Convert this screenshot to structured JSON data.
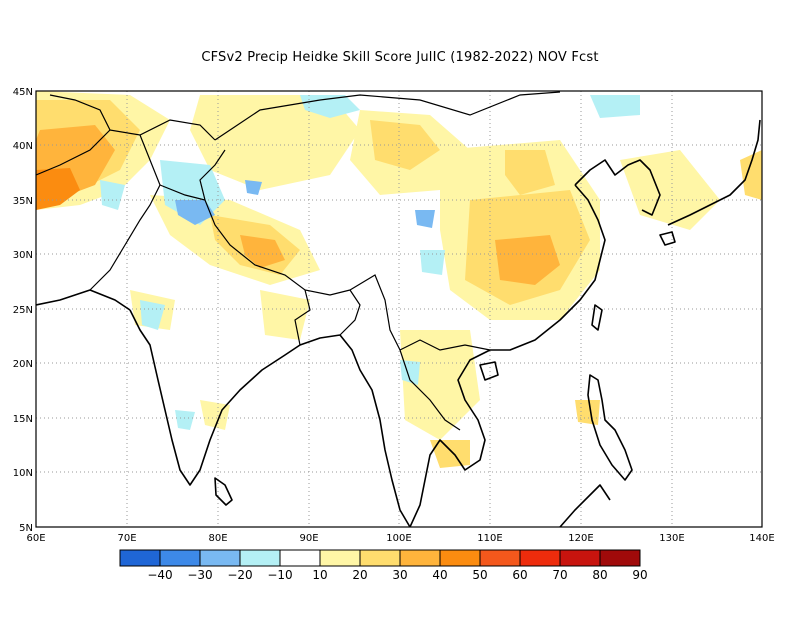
{
  "title": "CFSv2 Precip Heidke Skill Score JulIC (1982-2022) NOV Fcst",
  "map": {
    "lon_range": [
      60,
      140
    ],
    "lat_range": [
      5,
      45
    ],
    "lon_labels": [
      "60E",
      "70E",
      "80E",
      "90E",
      "100E",
      "110E",
      "120E",
      "130E",
      "140E"
    ],
    "lat_labels": [
      "5N",
      "10N",
      "15N",
      "20N",
      "25N",
      "30N",
      "35N",
      "40N",
      "45N"
    ]
  },
  "colorbar": {
    "colors": [
      "#1f66d6",
      "#3d89e8",
      "#79b9f2",
      "#b4f0f5",
      "#ffffff",
      "#fff6a6",
      "#ffdd6e",
      "#ffb43c",
      "#fb8c10",
      "#f4581c",
      "#ee2c0c",
      "#c8140e",
      "#a00a0a"
    ],
    "labels": [
      "-40",
      "-30",
      "-20",
      "-10",
      "10",
      "20",
      "30",
      "40",
      "50",
      "60",
      "70",
      "80",
      "90"
    ]
  }
}
